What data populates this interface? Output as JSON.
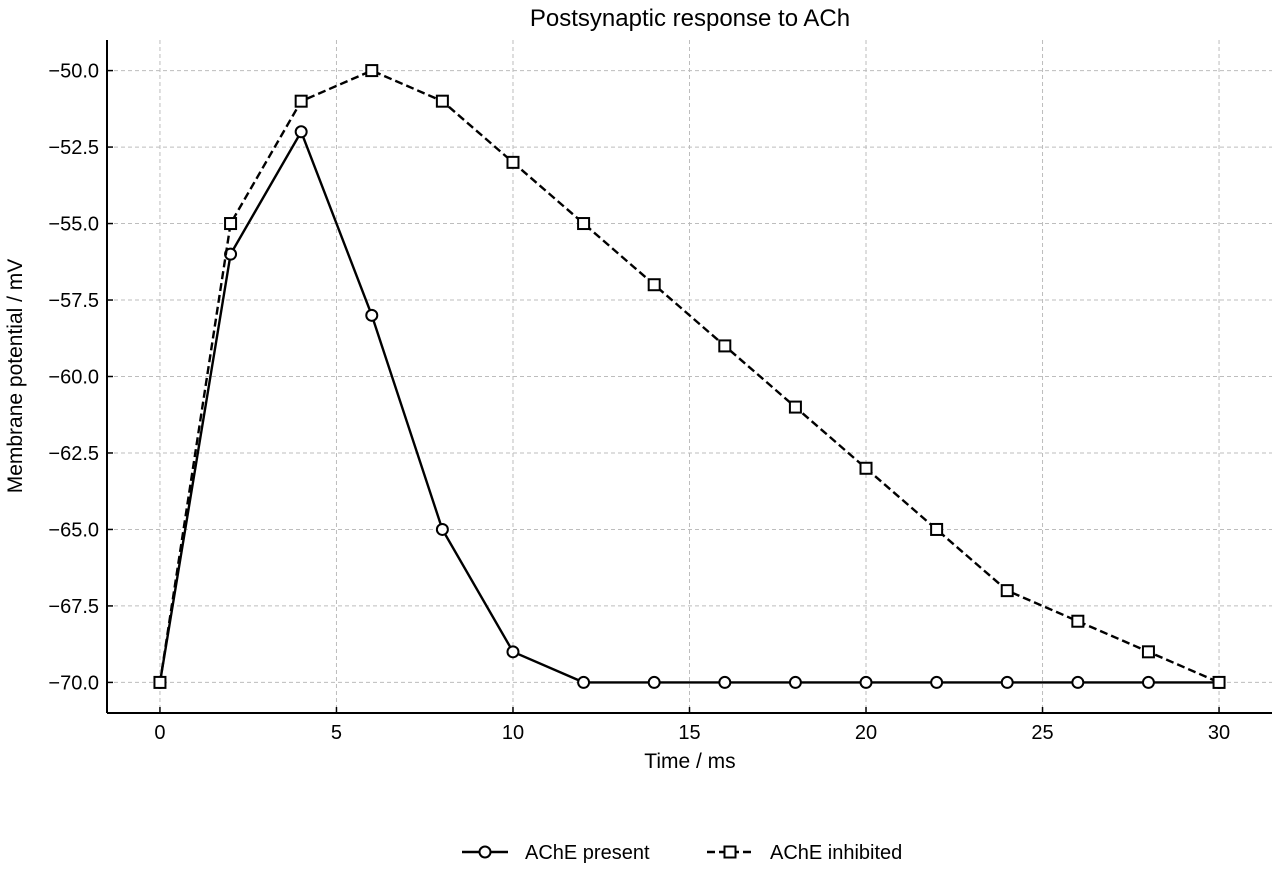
{
  "chart_data": {
    "type": "line",
    "title": "Postsynaptic response to ACh",
    "xlabel": "Time / ms",
    "ylabel": "Membrane potential / mV",
    "xlim": [
      -1.5,
      31.5
    ],
    "ylim": [
      -71.0,
      -49.0
    ],
    "x_ticks": [
      0,
      5,
      10,
      15,
      20,
      25,
      30
    ],
    "x_tick_labels": [
      "0",
      "5",
      "10",
      "15",
      "20",
      "25",
      "30"
    ],
    "y_ticks": [
      -50.0,
      -52.5,
      -55.0,
      -57.5,
      -60.0,
      -62.5,
      -65.0,
      -67.5,
      -70.0
    ],
    "y_tick_labels": [
      "−50.0",
      "−52.5",
      "−55.0",
      "−57.5",
      "−60.0",
      "−62.5",
      "−65.0",
      "−67.5",
      "−70.0"
    ],
    "grid": true,
    "legend_position": "bottom-center",
    "x": [
      0,
      2,
      4,
      6,
      8,
      10,
      12,
      14,
      16,
      18,
      20,
      22,
      24,
      26,
      28,
      30
    ],
    "series": [
      {
        "name": "AChE present",
        "marker": "circle",
        "line_style": "solid",
        "color": "#000000",
        "values": [
          -70,
          -56,
          -52,
          -58,
          -65,
          -69,
          -70,
          -70,
          -70,
          -70,
          -70,
          -70,
          -70,
          -70,
          -70,
          -70
        ]
      },
      {
        "name": "AChE inhibited",
        "marker": "square",
        "line_style": "dashed",
        "color": "#000000",
        "values": [
          -70,
          -55,
          -51,
          -50,
          -51,
          -53,
          -55,
          -57,
          -59,
          -61,
          -63,
          -65,
          -67,
          -68,
          -69,
          -70
        ]
      }
    ]
  }
}
